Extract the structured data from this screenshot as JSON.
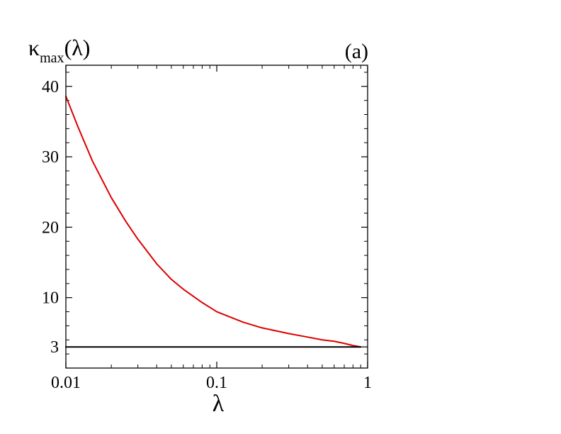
{
  "chart_data": {
    "type": "line",
    "panel_label": "(a)",
    "xlabel": "λ",
    "ylabel": {
      "symbol": "κ",
      "subscript": "max",
      "argument": "(λ)"
    },
    "x_scale": "log",
    "xlim": [
      0.01,
      1
    ],
    "ylim": [
      0,
      43
    ],
    "x_ticks": [
      0.01,
      0.1,
      1
    ],
    "x_tick_labels": [
      "0.01",
      "0.1",
      "1"
    ],
    "y_ticks": [
      3,
      10,
      20,
      30,
      40
    ],
    "y_tick_labels": [
      "3",
      "10",
      "20",
      "30",
      "40"
    ],
    "grid": false,
    "series": [
      {
        "color": "#dd0000",
        "x": [
          0.01,
          0.012,
          0.015,
          0.02,
          0.025,
          0.03,
          0.04,
          0.05,
          0.06,
          0.08,
          0.1,
          0.15,
          0.2,
          0.3,
          0.4,
          0.5,
          0.6,
          0.7,
          0.8,
          0.9
        ],
        "y": [
          38.6,
          34.3,
          29.4,
          24.2,
          20.8,
          18.3,
          14.8,
          12.6,
          11.2,
          9.3,
          8.0,
          6.5,
          5.7,
          4.9,
          4.4,
          4.0,
          3.8,
          3.5,
          3.2,
          3.0
        ]
      },
      {
        "color": "#000000",
        "x": [
          0.01,
          0.9
        ],
        "y": [
          3.0,
          3.0
        ]
      }
    ]
  }
}
